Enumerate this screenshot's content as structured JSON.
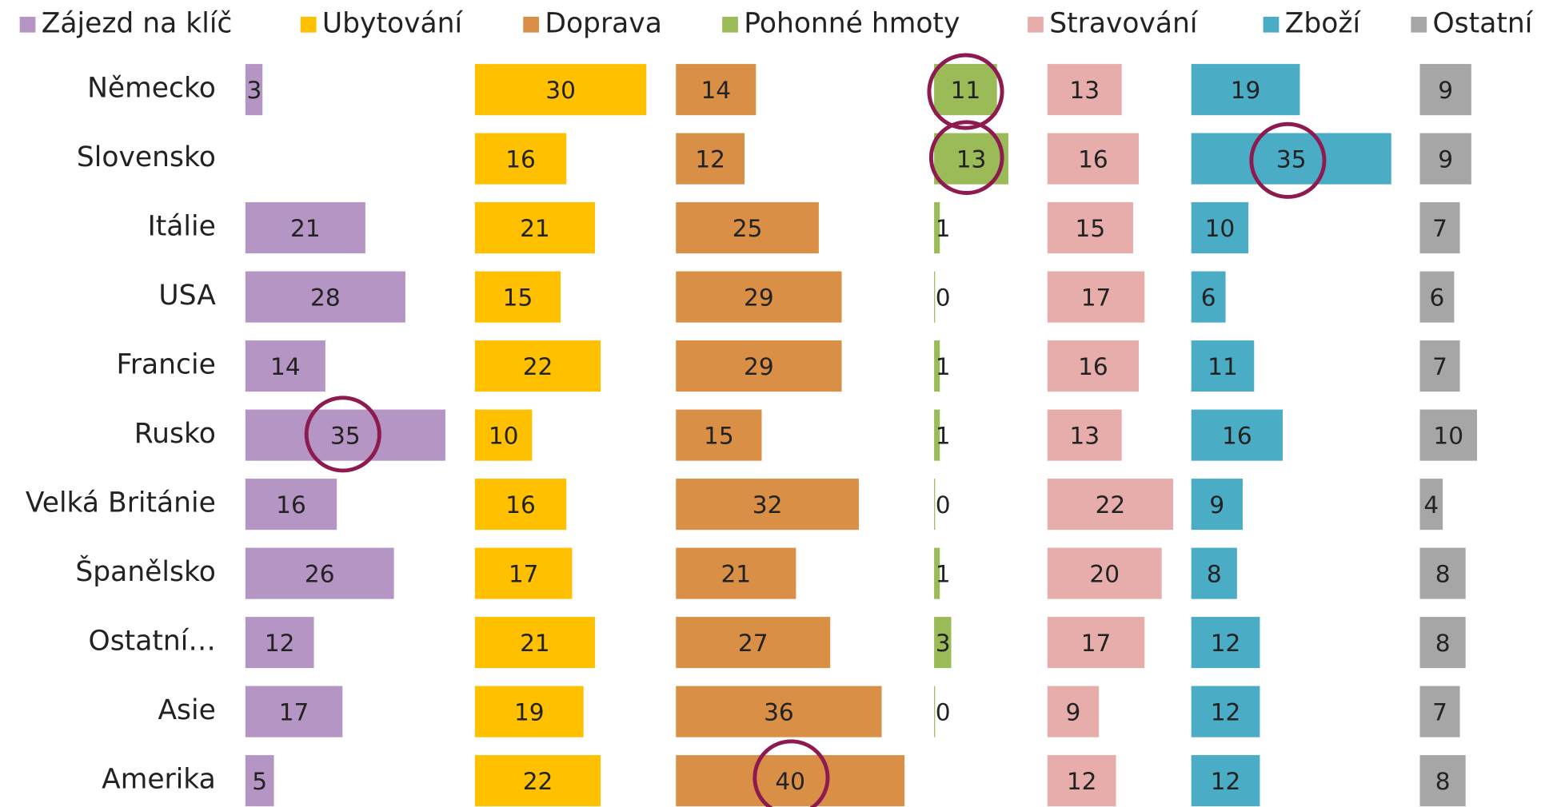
{
  "chart_data": {
    "type": "bar",
    "categories": [
      "Německo",
      "Slovensko",
      "Itálie",
      "USA",
      "Francie",
      "Rusko",
      "Velká Británie",
      "Španělsko",
      "Ostatní…",
      "Asie",
      "Amerika"
    ],
    "xlim": [
      0,
      40
    ],
    "series": [
      {
        "name": "Zájezd na klíč",
        "color": "#b595c3",
        "values": [
          3,
          null,
          21,
          28,
          14,
          35,
          16,
          26,
          12,
          17,
          5
        ]
      },
      {
        "name": "Ubytování",
        "color": "#ffc000",
        "values": [
          30,
          16,
          21,
          15,
          22,
          10,
          16,
          17,
          21,
          19,
          22
        ]
      },
      {
        "name": "Doprava",
        "color": "#d98f46",
        "values": [
          14,
          12,
          25,
          29,
          29,
          15,
          32,
          21,
          27,
          36,
          40
        ]
      },
      {
        "name": "Pohonné hmoty",
        "color": "#9bbb59",
        "values": [
          11,
          13,
          1,
          0,
          1,
          1,
          0,
          1,
          3,
          0,
          null
        ]
      },
      {
        "name": "Stravování",
        "color": "#e6adab",
        "values": [
          13,
          16,
          15,
          17,
          16,
          13,
          22,
          20,
          17,
          9,
          12
        ]
      },
      {
        "name": "Zboží",
        "color": "#4bacc6",
        "values": [
          19,
          35,
          10,
          6,
          11,
          16,
          9,
          8,
          12,
          12,
          12
        ]
      },
      {
        "name": "Ostatní",
        "color": "#a6a6a6",
        "values": [
          9,
          9,
          7,
          6,
          7,
          10,
          4,
          8,
          8,
          7,
          8
        ]
      }
    ]
  }
}
